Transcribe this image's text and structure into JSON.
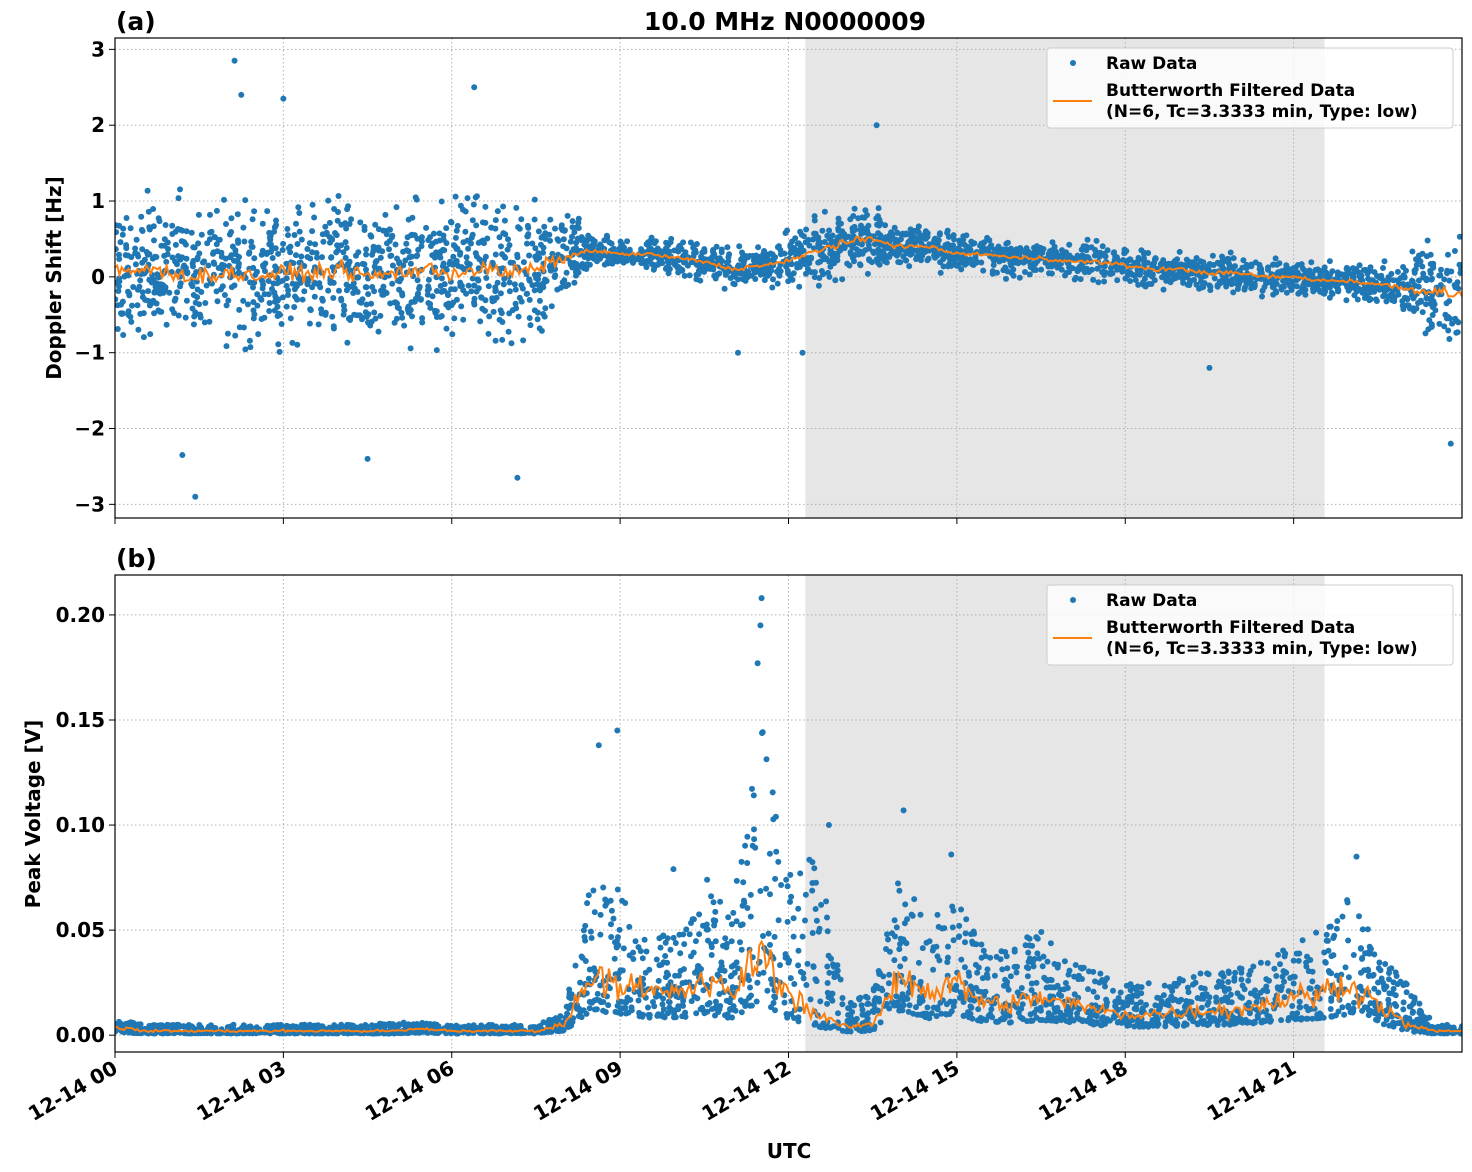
{
  "title": "10.0 MHz N0000009",
  "xlabel": "UTC",
  "x_tick_labels": [
    "12-14 00",
    "12-14 03",
    "12-14 06",
    "12-14 09",
    "12-14 12",
    "12-14 15",
    "12-14 18",
    "12-14 21"
  ],
  "legend": {
    "raw": "Raw Data",
    "filtered_line1": "Butterworth Filtered Data",
    "filtered_line2": "(N=6, Tc=3.3333 min, Type: low)"
  },
  "colors": {
    "raw": "#1f77b4",
    "filtered": "#ff7f0e",
    "shade": "#e6e6e6"
  },
  "chart_data": [
    {
      "type": "scatter",
      "panel_label": "(a)",
      "title": "10.0 MHz N0000009",
      "xlabel": "",
      "ylabel": "Doppler Shift [Hz]",
      "xlim": [
        "12-14 00:00",
        "12-15 00:00"
      ],
      "ylim": [
        -3.18,
        3.15
      ],
      "y_ticks": [
        -3,
        -2,
        -1,
        0,
        1,
        2,
        3
      ],
      "y_tick_labels": [
        "−3",
        "−2",
        "−1",
        "0",
        "1",
        "2",
        "3"
      ],
      "grid": true,
      "legend_position": "top-right",
      "shaded_interval_utc_hours": [
        12.3,
        21.55
      ],
      "x_hours": [
        0,
        0.5,
        1,
        1.5,
        2,
        2.5,
        3,
        3.5,
        4,
        4.5,
        5,
        5.5,
        6,
        6.5,
        7,
        7.5,
        8,
        8.5,
        9,
        9.5,
        10,
        10.5,
        11,
        11.5,
        12,
        12.5,
        13,
        13.5,
        14,
        14.5,
        15,
        15.5,
        16,
        16.5,
        17,
        17.5,
        18,
        18.5,
        19,
        19.5,
        20,
        20.5,
        21,
        21.5,
        22,
        22.5,
        23,
        23.5,
        24
      ],
      "series": [
        {
          "name": "Butterworth Filtered Data",
          "type": "line",
          "values": [
            0.05,
            0.1,
            0.05,
            0.0,
            0.05,
            0.0,
            0.05,
            0.05,
            0.1,
            0.0,
            0.05,
            0.1,
            0.05,
            0.1,
            0.05,
            0.1,
            0.25,
            0.35,
            0.3,
            0.3,
            0.25,
            0.2,
            0.1,
            0.15,
            0.2,
            0.35,
            0.45,
            0.5,
            0.4,
            0.4,
            0.3,
            0.3,
            0.25,
            0.25,
            0.2,
            0.2,
            0.15,
            0.1,
            0.1,
            0.05,
            0.05,
            0.0,
            0.0,
            -0.05,
            -0.05,
            -0.1,
            -0.15,
            -0.2,
            -0.2
          ]
        },
        {
          "name": "Raw Data",
          "type": "scatter",
          "spread": [
            1.3,
            1.3,
            1.3,
            1.3,
            1.3,
            1.3,
            1.3,
            1.3,
            1.3,
            1.3,
            1.3,
            1.3,
            1.3,
            1.3,
            1.3,
            1.3,
            0.8,
            0.3,
            0.25,
            0.3,
            0.35,
            0.35,
            0.35,
            0.3,
            0.5,
            0.55,
            0.55,
            0.6,
            0.35,
            0.35,
            0.35,
            0.3,
            0.35,
            0.35,
            0.3,
            0.35,
            0.35,
            0.35,
            0.3,
            0.35,
            0.35,
            0.3,
            0.3,
            0.3,
            0.35,
            0.45,
            0.55,
            0.9,
            1.2
          ],
          "outliers": [
            [
              2.13,
              2.85
            ],
            [
              1.43,
              -2.9
            ],
            [
              7.17,
              -2.65
            ],
            [
              6.4,
              2.5
            ],
            [
              13.57,
              2.0
            ],
            [
              19.5,
              -1.2
            ],
            [
              2.25,
              2.4
            ],
            [
              1.2,
              -2.35
            ],
            [
              4.5,
              -2.4
            ],
            [
              3.0,
              2.35
            ],
            [
              11.1,
              -1.0
            ],
            [
              12.25,
              -1.0
            ],
            [
              23.8,
              -2.2
            ]
          ]
        }
      ]
    },
    {
      "type": "scatter",
      "panel_label": "(b)",
      "xlabel": "UTC",
      "ylabel": "Peak Voltage [V]",
      "xlim": [
        "12-14 00:00",
        "12-15 00:00"
      ],
      "ylim": [
        -0.008,
        0.219
      ],
      "y_ticks": [
        0,
        0.05,
        0.1,
        0.15,
        0.2
      ],
      "y_tick_labels": [
        "0.00",
        "0.05",
        "0.10",
        "0.15",
        "0.20"
      ],
      "grid": true,
      "legend_position": "top-right",
      "shaded_interval_utc_hours": [
        12.3,
        21.55
      ],
      "x_hours": [
        0,
        0.5,
        1,
        1.5,
        2,
        2.5,
        3,
        3.5,
        4,
        4.5,
        5,
        5.5,
        6,
        6.5,
        7,
        7.5,
        8,
        8.5,
        9,
        9.5,
        10,
        10.5,
        11,
        11.5,
        12,
        12.5,
        13,
        13.5,
        14,
        14.5,
        15,
        15.5,
        16,
        16.5,
        17,
        17.5,
        18,
        18.5,
        19,
        19.5,
        20,
        20.5,
        21,
        21.5,
        22,
        22.5,
        23,
        23.5,
        24
      ],
      "series": [
        {
          "name": "Butterworth Filtered Data",
          "type": "line",
          "values": [
            0.004,
            0.002,
            0.002,
            0.002,
            0.002,
            0.002,
            0.002,
            0.002,
            0.002,
            0.002,
            0.002,
            0.003,
            0.002,
            0.002,
            0.002,
            0.002,
            0.005,
            0.03,
            0.025,
            0.02,
            0.02,
            0.025,
            0.02,
            0.04,
            0.02,
            0.01,
            0.004,
            0.005,
            0.03,
            0.02,
            0.025,
            0.015,
            0.015,
            0.018,
            0.015,
            0.012,
            0.01,
            0.01,
            0.011,
            0.012,
            0.012,
            0.015,
            0.018,
            0.02,
            0.025,
            0.015,
            0.005,
            0.002,
            0.002
          ]
        },
        {
          "name": "Raw Data",
          "type": "scatter",
          "upper": [
            0.008,
            0.005,
            0.005,
            0.005,
            0.005,
            0.005,
            0.005,
            0.005,
            0.005,
            0.005,
            0.006,
            0.006,
            0.005,
            0.005,
            0.005,
            0.005,
            0.01,
            0.08,
            0.07,
            0.045,
            0.05,
            0.07,
            0.06,
            0.15,
            0.08,
            0.09,
            0.02,
            0.02,
            0.08,
            0.055,
            0.065,
            0.04,
            0.045,
            0.05,
            0.035,
            0.03,
            0.025,
            0.025,
            0.028,
            0.03,
            0.032,
            0.035,
            0.045,
            0.05,
            0.07,
            0.04,
            0.025,
            0.005,
            0.005
          ],
          "outliers": [
            [
              11.52,
              0.208
            ],
            [
              11.5,
              0.195
            ],
            [
              8.95,
              0.145
            ],
            [
              8.62,
              0.138
            ],
            [
              12.72,
              0.1
            ],
            [
              14.05,
              0.107
            ],
            [
              22.12,
              0.085
            ],
            [
              11.45,
              0.177
            ],
            [
              14.9,
              0.086
            ],
            [
              9.95,
              0.079
            ],
            [
              10.55,
              0.074
            ]
          ]
        }
      ]
    }
  ]
}
